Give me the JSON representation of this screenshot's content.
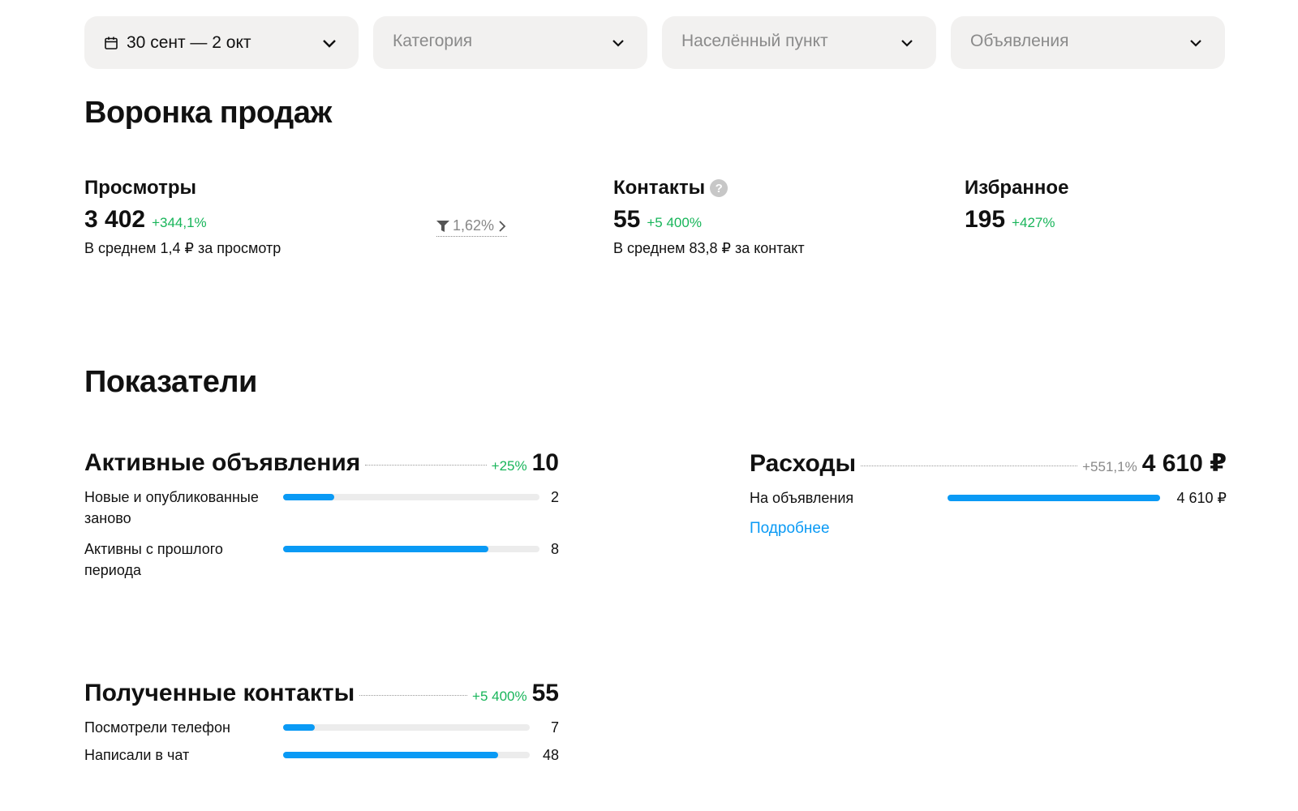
{
  "filters": {
    "date": "30 сент — 2 окт",
    "category_placeholder": "Категория",
    "location_placeholder": "Населённый пункт",
    "ads_placeholder": "Объявления"
  },
  "funnel": {
    "title": "Воронка продаж",
    "views": {
      "label": "Просмотры",
      "value": "3 402",
      "delta": "+344,1%",
      "note": "В среднем 1,4 ₽ за просмотр"
    },
    "conversion": "1,62%",
    "contacts": {
      "label": "Контакты",
      "value": "55",
      "delta": "+5 400%",
      "note": "В среднем 83,8 ₽ за контакт",
      "help": "?"
    },
    "favorites": {
      "label": "Избранное",
      "value": "195",
      "delta": "+427%"
    }
  },
  "metrics": {
    "title": "Показатели",
    "active_ads": {
      "title": "Активные объявления",
      "delta": "+25%",
      "value": "10",
      "rows": [
        {
          "label": "Новые и опубликованные заново",
          "value": "2",
          "fraction": 0.2
        },
        {
          "label": "Активны с прошлого периода",
          "value": "8",
          "fraction": 0.8
        }
      ]
    },
    "expenses": {
      "title": "Расходы",
      "delta": "+551,1%",
      "value": "4 610 ₽",
      "rows": [
        {
          "label": "На объявления",
          "value": "4 610 ₽",
          "fraction": 1.0
        }
      ],
      "link": "Подробнее"
    },
    "contacts_received": {
      "title": "Полученные контакты",
      "delta": "+5 400%",
      "value": "55",
      "rows": [
        {
          "label": "Посмотрели телефон",
          "value": "7",
          "fraction": 0.127
        },
        {
          "label": "Написали в чат",
          "value": "48",
          "fraction": 0.873
        }
      ]
    }
  },
  "colors": {
    "accent": "#0a9af5",
    "positive": "#18b55a",
    "filter_bg": "#f2f1f0"
  },
  "icons": [
    "calendar-icon",
    "chevron-down-icon",
    "help-icon",
    "filter-icon",
    "chevron-right-icon"
  ]
}
